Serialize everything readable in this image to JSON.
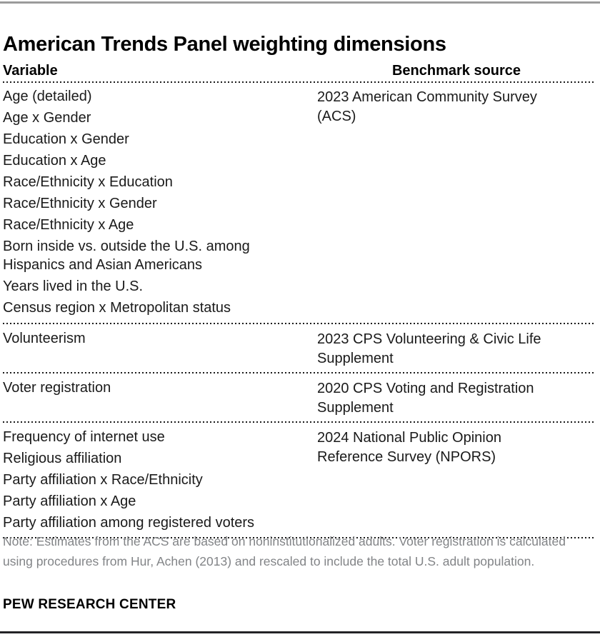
{
  "chart_data": {
    "type": "table",
    "title": "American Trends Panel weighting dimensions",
    "columns": [
      "Variable",
      "Benchmark source"
    ],
    "sections": [
      {
        "variables": [
          "Age (detailed)",
          "Age x Gender",
          "Education x Gender",
          "Education x Age",
          "Race/Ethnicity x Education",
          "Race/Ethnicity x Gender",
          "Race/Ethnicity x Age",
          "Born inside vs. outside the U.S. among\nHispanics and Asian Americans",
          "Years lived in the U.S.",
          "Census region x Metropolitan status"
        ],
        "benchmark": "2023 American Community Survey\n(ACS)"
      },
      {
        "variables": [
          "Volunteerism"
        ],
        "benchmark": "2023 CPS Volunteering & Civic Life\nSupplement"
      },
      {
        "variables": [
          "Voter registration"
        ],
        "benchmark": "2020 CPS Voting and Registration\nSupplement"
      },
      {
        "variables": [
          "Frequency of internet use",
          "Religious affiliation",
          "Party affiliation x Race/Ethnicity",
          "Party affiliation x Age",
          "Party affiliation among registered voters"
        ],
        "benchmark": "2024 National Public Opinion\nReference Survey (NPORS)"
      }
    ],
    "note": "Note: Estimates from the ACS are based on noninstitutionalized adults. Voter registration is calculated using procedures from Hur, Achen (2013) and rescaled to include the total U.S. adult population.",
    "source_label": "PEW RESEARCH CENTER",
    "layout": {
      "grid": "off",
      "legend": "none"
    }
  },
  "colors": {
    "top_rule": "#9b9b9b",
    "bottom_rule": "#232326",
    "divider": "#1b1b1b",
    "body_text": "#1a1a1a",
    "note_text": "#828487",
    "background": "#ffffff"
  }
}
